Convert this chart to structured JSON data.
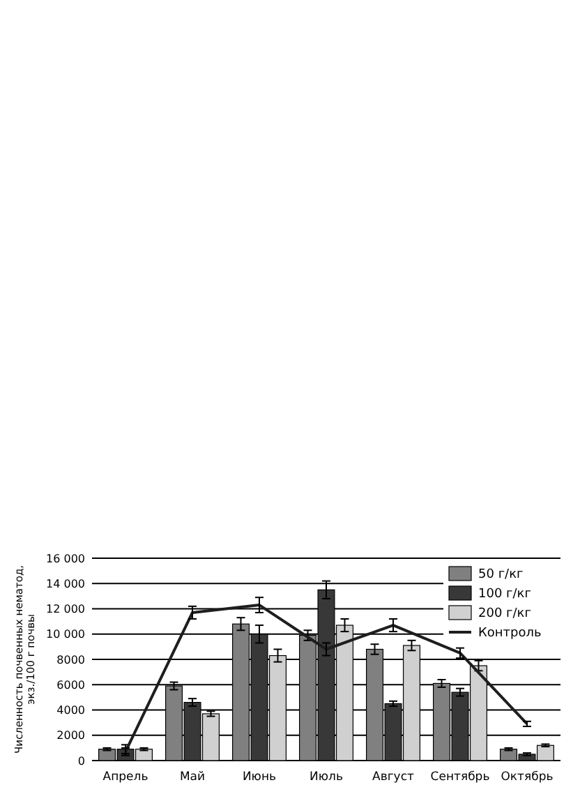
{
  "chart_data": {
    "type": "bar",
    "ylabel": "Численность почвенных нематод, экз./100 г почвы",
    "categories": [
      "Апрель",
      "Май",
      "Июнь",
      "Июль",
      "Август",
      "Сентябрь",
      "Октябрь"
    ],
    "series": [
      {
        "name": "50 г/кг",
        "color": "#808080",
        "values": [
          900,
          5900,
          10800,
          9900,
          8800,
          6100,
          900
        ],
        "errors": [
          100,
          300,
          500,
          400,
          400,
          300,
          100
        ]
      },
      {
        "name": "100 г/кг",
        "color": "#383838",
        "values": [
          900,
          4600,
          10000,
          13500,
          4500,
          5400,
          500
        ],
        "errors": [
          350,
          300,
          700,
          700,
          200,
          300,
          100
        ]
      },
      {
        "name": "200 г/кг",
        "color": "#d0d0d0",
        "values": [
          900,
          3700,
          8300,
          10700,
          9100,
          7500,
          1200
        ],
        "errors": [
          100,
          200,
          500,
          500,
          400,
          400,
          100
        ]
      },
      {
        "name": "Контроль",
        "type": "line",
        "color": "#1e1e1e",
        "values": [
          700,
          11700,
          12300,
          8800,
          10700,
          8500,
          2900
        ],
        "errors": [
          300,
          500,
          600,
          500,
          500,
          400,
          200
        ]
      }
    ],
    "ylim": [
      0,
      16000
    ],
    "yticks": [
      0,
      {
        "value": 2000,
        "label": "2000"
      },
      {
        "value": 4000,
        "label": "4000"
      },
      {
        "value": 6000,
        "label": "6000"
      },
      {
        "value": 8000,
        "label": "8000"
      },
      {
        "value": 10000,
        "label": "10 000"
      },
      {
        "value": 12000,
        "label": "12 000"
      },
      {
        "value": 14000,
        "label": "14 000"
      },
      {
        "value": 16000,
        "label": "16 000"
      }
    ],
    "grid": "y",
    "legend": "top right",
    "marker": "none"
  }
}
